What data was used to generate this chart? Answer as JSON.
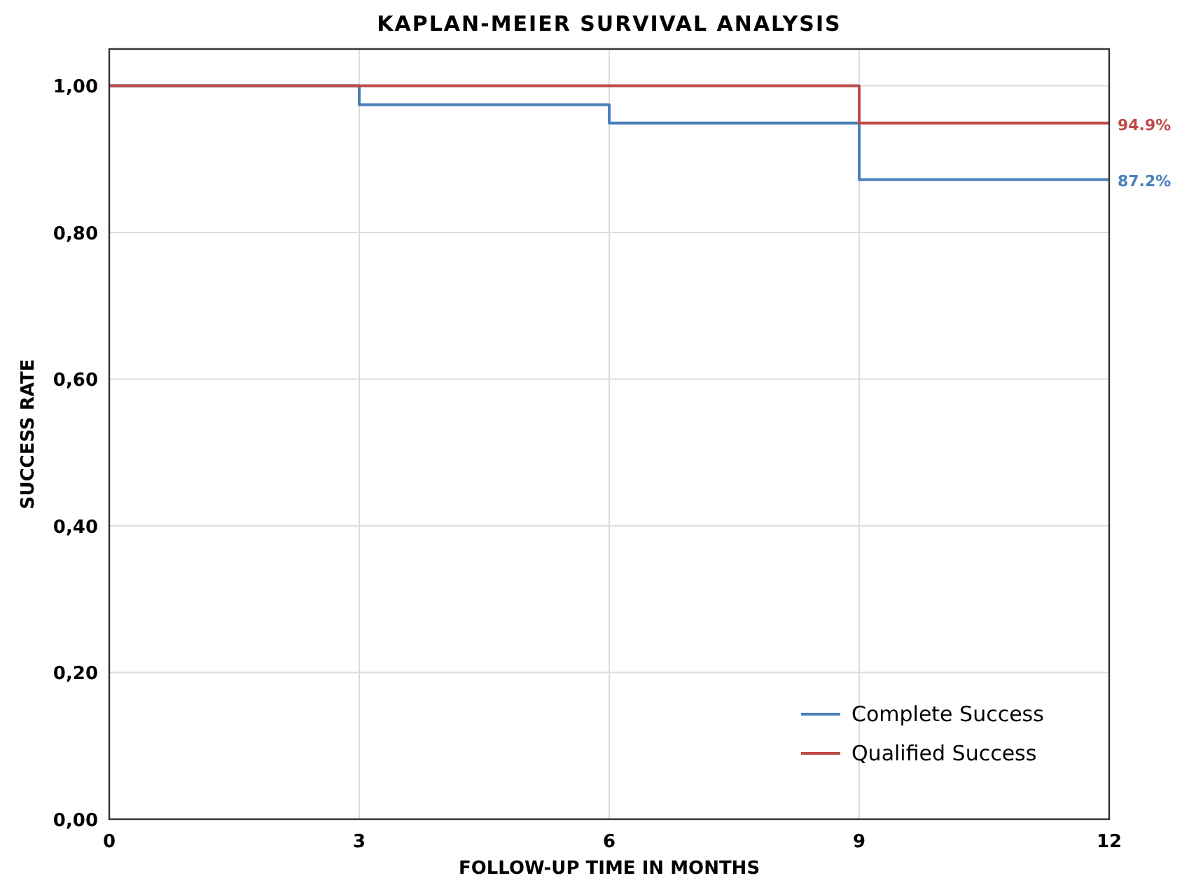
{
  "chart_data": {
    "type": "step",
    "title": "KAPLAN-MEIER SURVIVAL ANALYSIS",
    "xlabel": "FOLLOW-UP TIME IN MONTHS",
    "ylabel": "SUCCESS RATE",
    "x": [
      0,
      3,
      6,
      9,
      12
    ],
    "series": [
      {
        "name": "Complete Success",
        "color": "#4a7ebb",
        "values": [
          1,
          0.974,
          0.949,
          0.872,
          0.872
        ]
      },
      {
        "name": "Qualified Success",
        "color": "#be4b48",
        "values": [
          1,
          1,
          1,
          0.949,
          0.949
        ]
      }
    ],
    "annotations": [
      {
        "text": "94.9%",
        "x": 12,
        "y": 0.949
      },
      {
        "text": "87.2%",
        "x": 12,
        "y": 0.872
      }
    ],
    "xlim": [
      0,
      12
    ],
    "xticks": [
      0,
      3,
      6,
      9,
      12
    ],
    "ylim": [
      0,
      1.05
    ],
    "yticks": [
      {
        "value": 0,
        "label": "0,00"
      },
      {
        "value": 0.2,
        "label": "0,20"
      },
      {
        "value": 0.4,
        "label": "0,40"
      },
      {
        "value": 0.6,
        "label": "0,60"
      },
      {
        "value": 0.8,
        "label": "0,80"
      },
      {
        "value": 1,
        "label": "1,00"
      }
    ],
    "grid": true,
    "legend": "bottom right",
    "line_style": "solid"
  }
}
